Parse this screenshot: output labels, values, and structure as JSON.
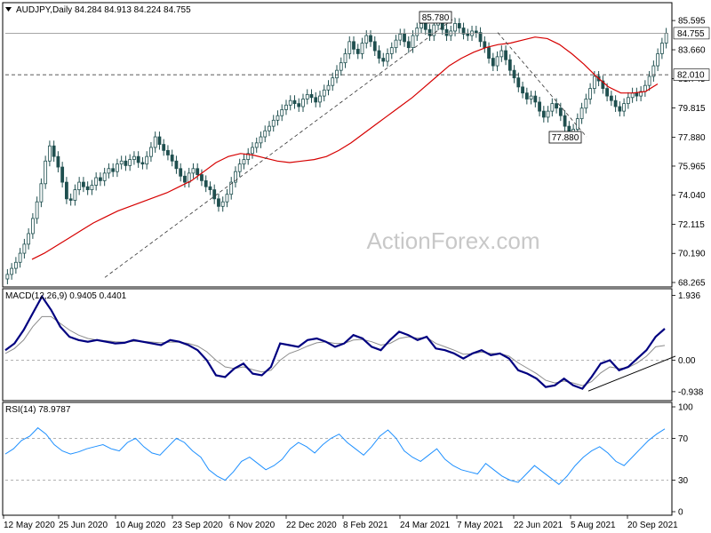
{
  "chart_data": [
    {
      "type": "candlestick",
      "title": "AUDJPY,Daily  84.284 84.913 84.224 84.755",
      "ylim": [
        68.265,
        86.5
      ],
      "y_ticks": [
        "85.595",
        "83.660",
        "81.745",
        "79.815",
        "77.880",
        "75.965",
        "74.040",
        "72.115",
        "70.190",
        "68.265"
      ],
      "last_price": "84.755",
      "level_label": "82.010",
      "annotations": [
        "85.780",
        "77.880"
      ],
      "watermark": "ActionForex.com",
      "closes": [
        68.8,
        69.2,
        69.6,
        70.2,
        70.8,
        71.5,
        72.5,
        73.6,
        74.8,
        76.3,
        77.3,
        76.6,
        75.9,
        74.9,
        73.8,
        73.7,
        74.4,
        74.9,
        74.6,
        74.4,
        74.7,
        75.2,
        75.0,
        75.5,
        75.8,
        75.6,
        76.1,
        76.3,
        76.0,
        76.4,
        76.6,
        76.2,
        76.1,
        76.6,
        77.2,
        77.9,
        77.4,
        77.0,
        76.7,
        76.3,
        75.8,
        75.3,
        74.9,
        75.5,
        75.8,
        75.4,
        75.0,
        74.6,
        74.4,
        73.8,
        73.3,
        73.6,
        74.1,
        74.9,
        75.6,
        76.1,
        76.4,
        76.8,
        77.2,
        77.5,
        77.9,
        78.3,
        78.6,
        79.0,
        79.3,
        79.7,
        80.0,
        80.3,
        80.1,
        79.9,
        80.4,
        80.7,
        80.5,
        80.2,
        80.6,
        81.0,
        81.3,
        81.8,
        82.3,
        82.8,
        83.4,
        84.2,
        83.7,
        83.4,
        84.1,
        84.6,
        84.2,
        83.6,
        83.1,
        82.9,
        83.4,
        83.8,
        84.3,
        84.7,
        84.2,
        83.8,
        84.6,
        85.1,
        85.4,
        85.0,
        84.6,
        85.3,
        85.6,
        85.0,
        84.6,
        84.9,
        85.4,
        85.1,
        84.7,
        84.6,
        84.9,
        84.8,
        84.2,
        83.8,
        83.1,
        82.6,
        83.2,
        83.6,
        83.0,
        82.3,
        81.8,
        81.2,
        80.8,
        80.4,
        80.6,
        80.2,
        79.6,
        79.2,
        79.6,
        80.1,
        79.8,
        79.3,
        78.6,
        78.0,
        78.4,
        79.1,
        79.8,
        80.4,
        81.1,
        81.9,
        81.6,
        81.1,
        80.6,
        80.3,
        79.9,
        79.6,
        80.1,
        80.5,
        80.8,
        80.6,
        80.9,
        81.3,
        81.9,
        82.6,
        83.4,
        84.1,
        84.755
      ],
      "ma_line": [
        69.8,
        70.2,
        70.7,
        71.2,
        71.7,
        72.2,
        72.6,
        73.0,
        73.3,
        73.6,
        73.9,
        74.2,
        74.6,
        75.0,
        75.6,
        76.2,
        76.6,
        76.8,
        76.7,
        76.5,
        76.3,
        76.2,
        76.3,
        76.4,
        76.6,
        77.0,
        77.5,
        78.1,
        78.7,
        79.3,
        79.9,
        80.5,
        81.2,
        81.9,
        82.6,
        83.1,
        83.5,
        83.8,
        84.0,
        84.1,
        84.3,
        84.5,
        84.4,
        84.0,
        83.4,
        82.7,
        81.9,
        81.2,
        80.8,
        80.8,
        80.9,
        81.4
      ],
      "trendline": [
        [
          70.0,
          68.3
        ],
        [
          85.78,
          85.78
        ]
      ],
      "diag_trendline": [
        [
          85.78
        ],
        [
          77.88
        ]
      ]
    },
    {
      "type": "line",
      "title": "MACD(12,26,9) 0.9405 0.4401",
      "ylim": [
        -1.1,
        2.0
      ],
      "y_ticks": [
        "1.936",
        "0.00",
        "-0.938"
      ],
      "macd": [
        0.3,
        0.5,
        0.9,
        1.4,
        1.9,
        1.5,
        1.0,
        0.7,
        0.6,
        0.55,
        0.6,
        0.55,
        0.5,
        0.52,
        0.6,
        0.55,
        0.5,
        0.45,
        0.6,
        0.55,
        0.45,
        0.3,
        0.0,
        -0.45,
        -0.5,
        -0.25,
        -0.1,
        -0.4,
        -0.45,
        -0.2,
        0.5,
        0.45,
        0.4,
        0.6,
        0.65,
        0.55,
        0.4,
        0.5,
        0.75,
        0.65,
        0.4,
        0.3,
        0.6,
        0.85,
        0.75,
        0.6,
        0.7,
        0.35,
        0.3,
        0.2,
        0.05,
        0.2,
        0.3,
        0.15,
        0.2,
        0.05,
        -0.3,
        -0.4,
        -0.55,
        -0.8,
        -0.75,
        -0.55,
        -0.75,
        -0.85,
        -0.5,
        -0.1,
        0.0,
        -0.3,
        -0.2,
        0.05,
        0.3,
        0.7,
        0.9405
      ],
      "signal": [
        0.2,
        0.35,
        0.6,
        1.0,
        1.3,
        1.3,
        1.1,
        0.9,
        0.75,
        0.65,
        0.6,
        0.58,
        0.55,
        0.54,
        0.56,
        0.56,
        0.54,
        0.52,
        0.54,
        0.54,
        0.5,
        0.42,
        0.25,
        0.0,
        -0.2,
        -0.25,
        -0.2,
        -0.28,
        -0.35,
        -0.3,
        0.0,
        0.2,
        0.3,
        0.42,
        0.52,
        0.55,
        0.5,
        0.5,
        0.6,
        0.62,
        0.55,
        0.45,
        0.5,
        0.65,
        0.7,
        0.66,
        0.68,
        0.5,
        0.4,
        0.3,
        0.18,
        0.19,
        0.24,
        0.2,
        0.2,
        0.12,
        -0.08,
        -0.24,
        -0.4,
        -0.6,
        -0.68,
        -0.62,
        -0.68,
        -0.76,
        -0.64,
        -0.38,
        -0.2,
        -0.25,
        -0.22,
        -0.08,
        0.12,
        0.4,
        0.4401
      ]
    },
    {
      "type": "line",
      "title": "RSI(14) 78.9787",
      "ylim": [
        0,
        100
      ],
      "y_ticks": [
        "100",
        "70",
        "30",
        "0"
      ],
      "levels": [
        70,
        30
      ],
      "values": [
        55,
        60,
        68,
        72,
        80,
        74,
        64,
        58,
        55,
        57,
        60,
        62,
        64,
        60,
        58,
        66,
        70,
        62,
        56,
        54,
        62,
        70,
        66,
        58,
        52,
        40,
        34,
        30,
        38,
        48,
        52,
        46,
        40,
        44,
        50,
        60,
        66,
        62,
        56,
        64,
        70,
        74,
        66,
        60,
        54,
        62,
        72,
        78,
        70,
        58,
        52,
        48,
        54,
        60,
        50,
        44,
        40,
        38,
        36,
        46,
        40,
        34,
        30,
        28,
        36,
        44,
        38,
        32,
        26,
        34,
        44,
        52,
        58,
        62,
        56,
        48,
        44,
        52,
        60,
        68,
        74,
        78.9787
      ]
    }
  ],
  "x_axis": {
    "tick_labels": [
      "12 May 2020",
      "25 Jun 2020",
      "10 Aug 2020",
      "23 Sep 2020",
      "6 Nov 2020",
      "22 Dec 2020",
      "8 Feb 2021",
      "24 Mar 2021",
      "7 May 2021",
      "22 Jun 2021",
      "5 Aug 2021",
      "20 Sep 2021"
    ]
  },
  "colors": {
    "candle": "#1f4f4f",
    "ma": "#d60000",
    "macd": "#000080",
    "signal": "#8c8c8c",
    "rsi": "#1e90ff",
    "grid_dash": "#9a9a9a",
    "label_box": "#000000"
  }
}
